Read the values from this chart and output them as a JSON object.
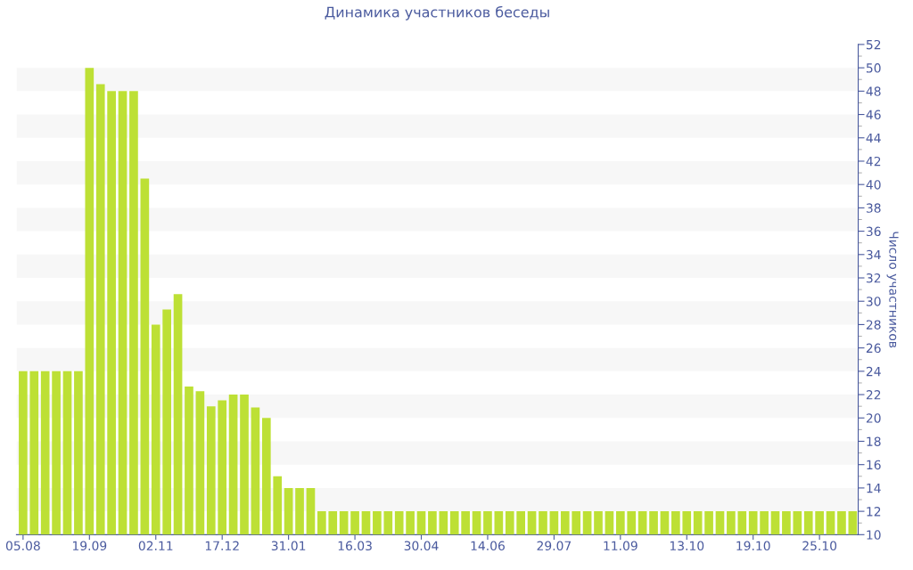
{
  "chart_data": {
    "type": "bar",
    "title": "Динамика участников беседы",
    "ylabel": "Число участников",
    "categories": [
      "05.08",
      null,
      null,
      null,
      null,
      null,
      "19.09",
      null,
      null,
      null,
      null,
      null,
      "02.11",
      null,
      null,
      null,
      null,
      null,
      "17.12",
      null,
      null,
      null,
      null,
      null,
      "31.01",
      null,
      null,
      null,
      null,
      null,
      "16.03",
      null,
      null,
      null,
      null,
      null,
      "30.04",
      null,
      null,
      null,
      null,
      null,
      "14.06",
      null,
      null,
      null,
      null,
      null,
      "29.07",
      null,
      null,
      null,
      null,
      null,
      "11.09",
      null,
      null,
      null,
      null,
      null,
      "13.10",
      null,
      null,
      null,
      null,
      null,
      "19.10",
      null,
      null,
      null,
      null,
      null,
      "25.10",
      null,
      null,
      null
    ],
    "values": [
      24,
      24,
      24,
      24,
      24,
      24,
      50,
      48.6,
      48,
      48,
      48,
      40.5,
      28,
      29.3,
      30.6,
      22.7,
      22.3,
      21,
      21.5,
      22,
      22,
      20.9,
      20,
      15,
      14,
      14,
      14,
      12,
      12,
      12,
      12,
      12,
      12,
      12,
      12,
      12,
      12,
      12,
      12,
      12,
      12,
      12,
      12,
      12,
      12,
      12,
      12,
      12,
      12,
      12,
      12,
      12,
      12,
      12,
      12,
      12,
      12,
      12,
      12,
      12,
      12,
      12,
      12,
      12,
      12,
      12,
      12,
      12,
      12,
      12,
      12,
      12,
      12,
      12,
      12,
      12
    ],
    "color": "#bde035",
    "ylim": [
      10,
      52
    ],
    "yticks": [
      10,
      12,
      14,
      16,
      18,
      20,
      22,
      24,
      26,
      28,
      30,
      32,
      34,
      36,
      38,
      40,
      42,
      44,
      46,
      48,
      50,
      52
    ],
    "bands": [
      {
        "axis": "y",
        "from": 12,
        "to": 14,
        "color": "#f7f7f7"
      },
      {
        "axis": "y",
        "from": 16,
        "to": 18,
        "color": "#f7f7f7"
      },
      {
        "axis": "y",
        "from": 20,
        "to": 22,
        "color": "#f7f7f7"
      },
      {
        "axis": "y",
        "from": 24,
        "to": 26,
        "color": "#f7f7f7"
      },
      {
        "axis": "y",
        "from": 28,
        "to": 30,
        "color": "#f7f7f7"
      },
      {
        "axis": "y",
        "from": 32,
        "to": 34,
        "color": "#f7f7f7"
      },
      {
        "axis": "y",
        "from": 36,
        "to": 38,
        "color": "#f7f7f7"
      },
      {
        "axis": "y",
        "from": 40,
        "to": 42,
        "color": "#f7f7f7"
      },
      {
        "axis": "y",
        "from": 44,
        "to": 46,
        "color": "#f7f7f7"
      },
      {
        "axis": "y",
        "from": 48,
        "to": 50,
        "color": "#f7f7f7"
      }
    ],
    "grid": false,
    "legend": false
  }
}
